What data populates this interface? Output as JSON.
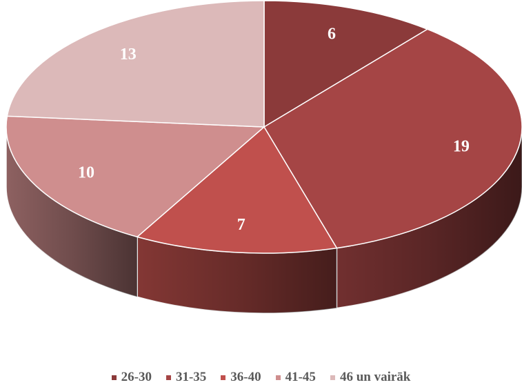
{
  "chart_data": {
    "type": "pie",
    "style": "3d",
    "categories": [
      "26-30",
      "31-35",
      "36-40",
      "41-45",
      "46 un vairāk"
    ],
    "values": [
      6,
      19,
      7,
      10,
      13
    ],
    "colors": [
      "#8B3A3A",
      "#A54545",
      "#C0504D",
      "#CF8E8E",
      "#DCB9B9"
    ],
    "data_labels": [
      "6",
      "19",
      "7",
      "10",
      "13"
    ],
    "legend_position": "bottom"
  },
  "legend": {
    "items": [
      {
        "label": "26-30",
        "color": "#8B3A3A"
      },
      {
        "label": "31-35",
        "color": "#A54545"
      },
      {
        "label": "36-40",
        "color": "#C0504D"
      },
      {
        "label": "41-45",
        "color": "#CF8E8E"
      },
      {
        "label": "46 un vairāk",
        "color": "#DCB9B9"
      }
    ]
  }
}
